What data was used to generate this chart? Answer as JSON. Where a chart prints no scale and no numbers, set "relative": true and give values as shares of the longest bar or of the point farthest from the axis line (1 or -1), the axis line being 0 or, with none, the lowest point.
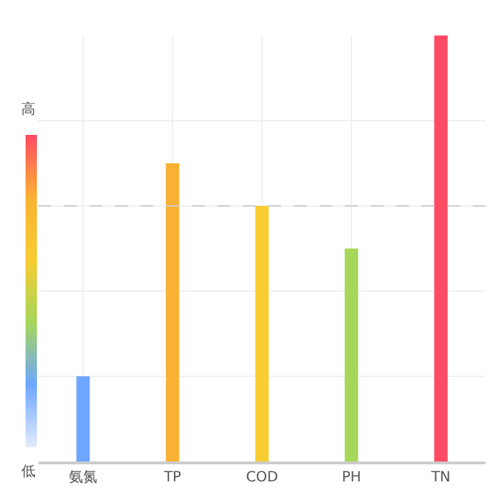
{
  "chart_data": {
    "type": "bar",
    "relative": true,
    "categories": [
      "氨氮",
      "TP",
      "COD",
      "PH",
      "TN"
    ],
    "values": [
      0.2,
      0.7,
      0.6,
      0.5,
      1.0
    ],
    "colors": [
      "#6ea6ff",
      "#f9b233",
      "#f8cc33",
      "#a6d65a",
      "#ff4b63"
    ],
    "ref_lines": [
      {
        "axis": "y",
        "value": 0.6,
        "color": "#cccccc",
        "line_style": "dashed"
      }
    ],
    "annotations": [
      "高",
      "低"
    ],
    "grid": true
  }
}
